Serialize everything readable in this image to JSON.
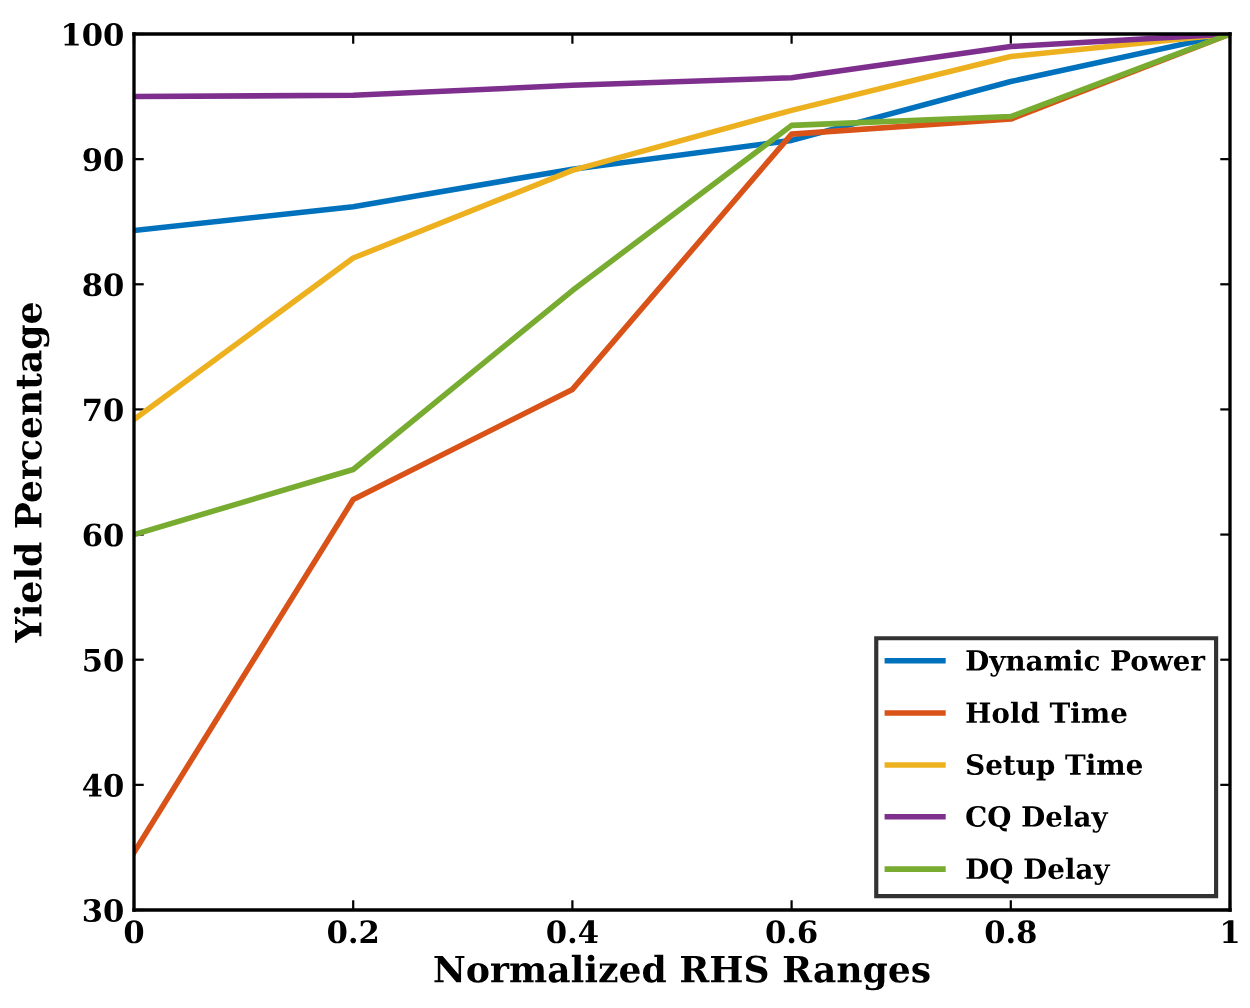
{
  "chart_data": {
    "type": "line",
    "xlabel": "Normalized RHS Ranges",
    "ylabel": "Yield Percentage",
    "x": [
      0,
      0.2,
      0.4,
      0.6,
      0.8,
      1
    ],
    "series": [
      {
        "name": "Dynamic Power",
        "color": "#0072bd",
        "values": [
          84.3,
          86.2,
          89.2,
          91.5,
          96.2,
          100
        ]
      },
      {
        "name": "Hold Time",
        "color": "#d95319",
        "values": [
          34.6,
          62.8,
          71.6,
          92.0,
          93.2,
          100
        ]
      },
      {
        "name": "Setup Time",
        "color": "#edb120",
        "values": [
          69.2,
          82.1,
          89.1,
          93.9,
          98.2,
          100
        ]
      },
      {
        "name": "CQ Delay",
        "color": "#7e2f8e",
        "values": [
          95.0,
          95.1,
          95.9,
          96.5,
          99.0,
          100
        ]
      },
      {
        "name": "DQ Delay",
        "color": "#77ac30",
        "values": [
          60.0,
          65.2,
          79.5,
          92.7,
          93.4,
          100
        ]
      }
    ],
    "xlim": [
      0,
      1
    ],
    "xticks": [
      0,
      0.2,
      0.4,
      0.6,
      0.8,
      1
    ],
    "ylim": [
      30,
      100
    ],
    "yticks": [
      30,
      40,
      50,
      60,
      70,
      80,
      90,
      100
    ],
    "grid": false,
    "legend": "bottom right"
  }
}
